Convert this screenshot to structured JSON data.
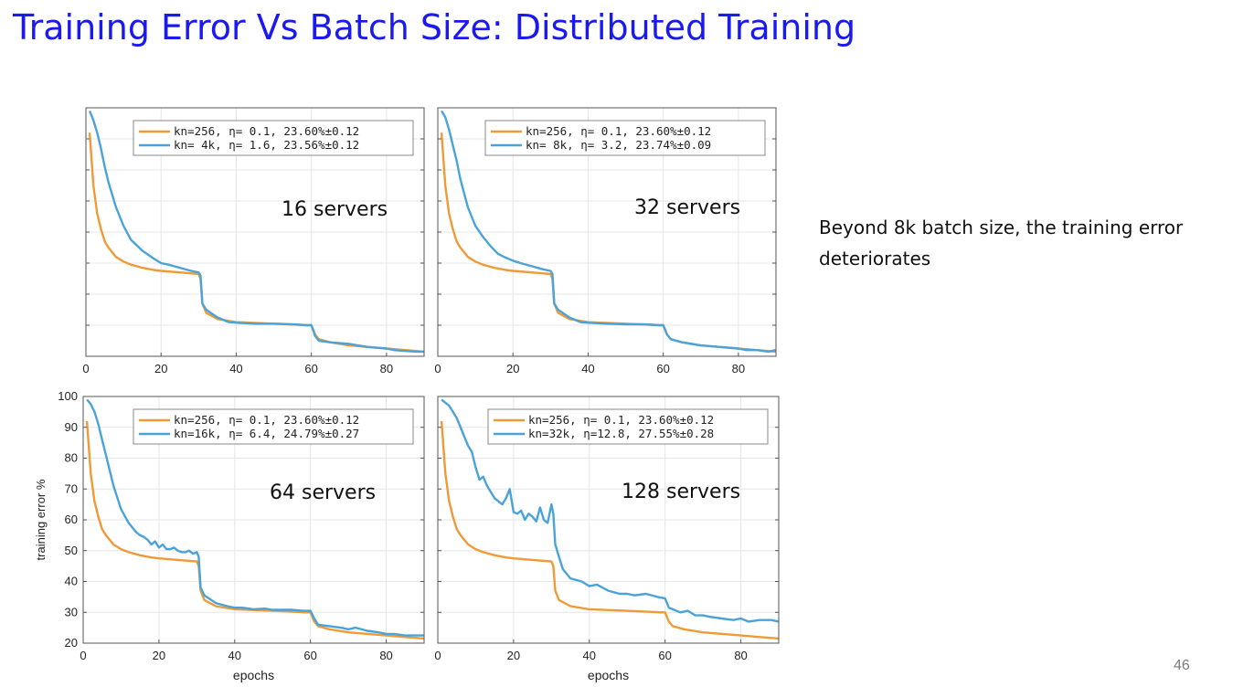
{
  "slide": {
    "title": "Training Error Vs Batch Size: Distributed Training",
    "note": "Beyond 8k batch size, the training error deteriorates",
    "page_number": "46"
  },
  "colors": {
    "title": "#1a1aee",
    "baseline": "#ef9a36",
    "large_batch": "#4aa3d8",
    "axis": "#555555",
    "grid": "#e6e6e6"
  },
  "chart_data": [
    {
      "type": "line",
      "annotation": "16 servers",
      "xlim": [
        0,
        90
      ],
      "ylim": [
        20,
        100
      ],
      "xticks": [
        0,
        20,
        40,
        60,
        80
      ],
      "yticks": [
        20,
        30,
        40,
        50,
        60,
        70,
        80,
        90,
        100
      ],
      "show_yticklabels": false,
      "show_xlabel": false,
      "show_ylabel": false,
      "grid": true,
      "legend_position": "top-right",
      "series": [
        {
          "name": "kn=256,  η= 0.1,  23.60%±0.12",
          "color": "#ef9a36",
          "x": [
            1,
            2,
            3,
            4,
            5,
            6,
            8,
            10,
            12,
            15,
            18,
            20,
            25,
            30,
            30.5,
            31,
            32,
            35,
            40,
            50,
            59,
            60,
            61,
            62,
            65,
            70,
            80,
            85,
            90
          ],
          "y": [
            92,
            75,
            66,
            61,
            57,
            55,
            52,
            50.5,
            49.5,
            48.5,
            47.8,
            47.5,
            47,
            46.5,
            45,
            37,
            34,
            32,
            31,
            30.5,
            30,
            30,
            27,
            25.5,
            24.5,
            23.5,
            22.5,
            22,
            21.5
          ]
        },
        {
          "name": "kn= 4k,  η= 1.6,  23.56%±0.12",
          "color": "#4aa3d8",
          "x": [
            1,
            2,
            3,
            4,
            5,
            6,
            8,
            10,
            12,
            15,
            18,
            20,
            22,
            25,
            28,
            30,
            30.5,
            31,
            32,
            35,
            38,
            40,
            45,
            50,
            55,
            59,
            60,
            61,
            62,
            65,
            70,
            75,
            80,
            82,
            85,
            88,
            90
          ],
          "y": [
            99,
            96,
            92,
            87,
            81,
            76,
            68,
            62,
            57.5,
            54,
            51.5,
            50,
            49.5,
            48.5,
            47.5,
            47,
            46,
            37,
            35,
            32.5,
            31,
            30.8,
            30.5,
            30.5,
            30.3,
            30,
            30,
            26.5,
            25,
            24.5,
            24,
            23,
            22.5,
            22,
            21.7,
            21.5,
            21.5
          ]
        }
      ]
    },
    {
      "type": "line",
      "annotation": "32 servers",
      "xlim": [
        0,
        90
      ],
      "ylim": [
        20,
        100
      ],
      "xticks": [
        0,
        20,
        40,
        60,
        80
      ],
      "yticks": [
        20,
        30,
        40,
        50,
        60,
        70,
        80,
        90,
        100
      ],
      "show_yticklabels": false,
      "show_xlabel": false,
      "show_ylabel": false,
      "grid": true,
      "legend_position": "top-right",
      "series": [
        {
          "name": "kn=256,  η= 0.1,  23.60%±0.12",
          "color": "#ef9a36",
          "x": [
            1,
            2,
            3,
            4,
            5,
            6,
            8,
            10,
            12,
            15,
            18,
            20,
            25,
            30,
            30.5,
            31,
            32,
            35,
            40,
            50,
            59,
            60,
            61,
            62,
            65,
            70,
            80,
            85,
            90
          ],
          "y": [
            92,
            75,
            66,
            61,
            57,
            55,
            52,
            50.5,
            49.5,
            48.5,
            47.8,
            47.5,
            47,
            46.5,
            45,
            37,
            34,
            32,
            31,
            30.5,
            30,
            30,
            27,
            25.5,
            24.5,
            23.5,
            22.5,
            22,
            21.5
          ]
        },
        {
          "name": "kn= 8k,  η= 3.2,  23.74%±0.09",
          "color": "#4aa3d8",
          "x": [
            1,
            2,
            3,
            4,
            5,
            6,
            8,
            10,
            12,
            14,
            16,
            18,
            20,
            22,
            25,
            28,
            30,
            30.5,
            31,
            32,
            35,
            38,
            40,
            45,
            50,
            55,
            59,
            60,
            61,
            62,
            65,
            70,
            75,
            80,
            82,
            85,
            88,
            90
          ],
          "y": [
            99,
            97,
            93,
            88,
            83,
            77,
            68,
            62,
            58.5,
            55.5,
            53,
            51.8,
            50.8,
            50,
            49,
            48,
            47.5,
            46.5,
            37,
            35,
            32.5,
            31,
            30.8,
            30.5,
            30.3,
            30.3,
            30,
            30,
            27,
            25.5,
            24.5,
            23.5,
            23,
            22.5,
            22,
            22,
            21.5,
            22
          ]
        }
      ]
    },
    {
      "type": "line",
      "annotation": "64 servers",
      "xlim": [
        0,
        90
      ],
      "ylim": [
        20,
        100
      ],
      "xticks": [
        0,
        20,
        40,
        60,
        80
      ],
      "yticks": [
        20,
        30,
        40,
        50,
        60,
        70,
        80,
        90,
        100
      ],
      "show_yticklabels": true,
      "show_xlabel": true,
      "show_ylabel": true,
      "xlabel": "epochs",
      "ylabel": "training error %",
      "grid": true,
      "legend_position": "top-right",
      "series": [
        {
          "name": "kn=256,  η= 0.1,  23.60%±0.12",
          "color": "#ef9a36",
          "x": [
            1,
            2,
            3,
            4,
            5,
            6,
            8,
            10,
            12,
            15,
            18,
            20,
            25,
            30,
            30.5,
            31,
            32,
            35,
            40,
            50,
            59,
            60,
            61,
            62,
            65,
            70,
            80,
            85,
            90
          ],
          "y": [
            92,
            75,
            66,
            61,
            57,
            55,
            52,
            50.5,
            49.5,
            48.5,
            47.8,
            47.5,
            47,
            46.5,
            45,
            37,
            34,
            32,
            31,
            30.5,
            30,
            30,
            27,
            25.5,
            24.5,
            23.5,
            22.5,
            22,
            21.5
          ]
        },
        {
          "name": "kn=16k,  η= 6.4,  24.79%±0.27",
          "color": "#4aa3d8",
          "x": [
            1,
            2,
            3,
            4,
            5,
            6,
            8,
            10,
            12,
            14,
            15,
            16,
            17,
            18,
            19,
            20,
            21,
            22,
            23,
            24,
            25,
            26,
            27,
            28,
            29,
            30,
            30.5,
            31,
            32,
            35,
            38,
            40,
            42,
            45,
            48,
            50,
            55,
            58,
            60,
            61,
            62,
            65,
            68,
            70,
            72,
            75,
            78,
            80,
            82,
            85,
            88,
            90
          ],
          "y": [
            99,
            97.5,
            95,
            91,
            86,
            81,
            71,
            63.5,
            59,
            56,
            55,
            54.5,
            53.5,
            52,
            53,
            51,
            52,
            50.5,
            50.5,
            51,
            50,
            49.5,
            49.5,
            50,
            49,
            49.5,
            48,
            38,
            35.5,
            33,
            32,
            31.5,
            31.5,
            31,
            31.2,
            30.8,
            30.8,
            30.5,
            30.5,
            28,
            26,
            25.5,
            25,
            24.5,
            25,
            24,
            23.5,
            23,
            23,
            22.5,
            22.5,
            22.5
          ]
        }
      ]
    },
    {
      "type": "line",
      "annotation": "128 servers",
      "xlim": [
        0,
        90
      ],
      "ylim": [
        20,
        100
      ],
      "xticks": [
        0,
        20,
        40,
        60,
        80
      ],
      "yticks": [
        20,
        30,
        40,
        50,
        60,
        70,
        80,
        90,
        100
      ],
      "show_yticklabels": false,
      "show_xlabel": true,
      "show_ylabel": false,
      "xlabel": "epochs",
      "grid": true,
      "legend_position": "top-right",
      "series": [
        {
          "name": "kn=256,  η= 0.1,  23.60%±0.12",
          "color": "#ef9a36",
          "x": [
            1,
            2,
            3,
            4,
            5,
            6,
            8,
            10,
            12,
            15,
            18,
            20,
            25,
            30,
            30.5,
            31,
            32,
            35,
            40,
            50,
            59,
            60,
            61,
            62,
            65,
            70,
            80,
            85,
            90
          ],
          "y": [
            92,
            75,
            66,
            61,
            57,
            55,
            52,
            50.5,
            49.5,
            48.5,
            47.8,
            47.5,
            47,
            46.5,
            45,
            37,
            34,
            32,
            31,
            30.5,
            30,
            30,
            27,
            25.5,
            24.5,
            23.5,
            22.5,
            22,
            21.5
          ]
        },
        {
          "name": "kn=32k,  η=12.8,  27.55%±0.28",
          "color": "#4aa3d8",
          "x": [
            1,
            2,
            3,
            4,
            5,
            6,
            7,
            8,
            9,
            10,
            11,
            12,
            13,
            14,
            15,
            16,
            17,
            18,
            19,
            20,
            21,
            22,
            23,
            24,
            25,
            26,
            27,
            28,
            29,
            30,
            30.5,
            31,
            32,
            33,
            35,
            38,
            40,
            42,
            45,
            48,
            50,
            52,
            55,
            58,
            60,
            61,
            62,
            64,
            66,
            68,
            70,
            72,
            75,
            78,
            80,
            82,
            85,
            88,
            90
          ],
          "y": [
            99,
            98,
            97,
            95,
            93,
            90,
            87,
            84,
            82,
            77,
            73,
            74,
            71,
            69,
            67,
            66,
            65,
            67,
            70,
            62.5,
            62,
            63,
            60,
            62,
            61,
            59.5,
            64,
            60,
            59,
            65,
            62,
            52,
            48,
            44,
            41,
            40,
            38.5,
            39,
            37,
            36,
            36,
            35.5,
            36,
            35,
            34.5,
            31.5,
            31,
            30,
            30.5,
            29,
            29,
            28.5,
            28,
            27.5,
            28,
            27,
            27.5,
            27.5,
            27
          ]
        }
      ]
    }
  ]
}
